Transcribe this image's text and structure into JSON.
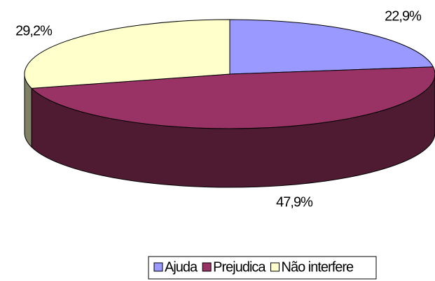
{
  "chart_data": {
    "type": "pie3d",
    "categories": [
      "Ajuda",
      "Prejudica",
      "Não interfere"
    ],
    "values": [
      22.9,
      47.9,
      29.2
    ],
    "value_labels": [
      "22,9%",
      "47,9%",
      "29,2%"
    ],
    "colors": [
      "#9999ff",
      "#993366",
      "#ffffcc"
    ],
    "side_colors": [
      "#4c4c80",
      "#4f1b33",
      "#808066"
    ],
    "legend": "bottom"
  }
}
